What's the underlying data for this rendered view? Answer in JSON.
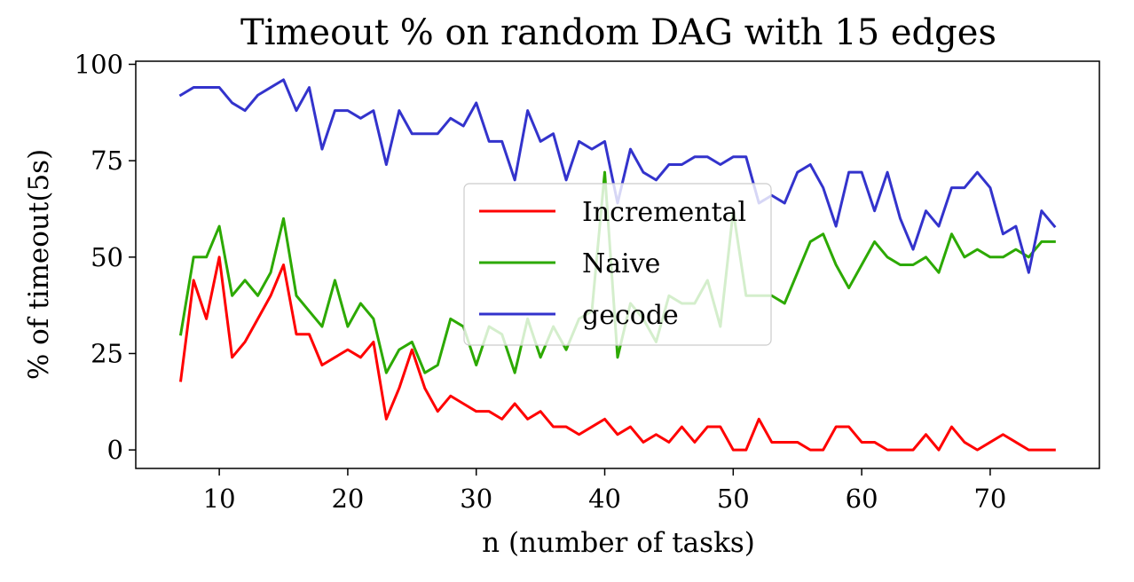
{
  "chart_data": {
    "type": "line",
    "title": "Timeout % on random DAG with 15 edges",
    "xlabel": "n (number of tasks)",
    "ylabel": "% of timeout(5s)",
    "xlim": [
      3.5,
      78.5
    ],
    "ylim": [
      -4.8,
      100.8
    ],
    "xticks": [
      10,
      20,
      30,
      40,
      50,
      60,
      70
    ],
    "yticks": [
      0,
      25,
      50,
      75,
      100
    ],
    "grid": false,
    "legend_position": "center",
    "x": [
      7,
      8,
      9,
      10,
      11,
      12,
      13,
      14,
      15,
      16,
      17,
      18,
      19,
      20,
      21,
      22,
      23,
      24,
      25,
      26,
      27,
      28,
      29,
      30,
      31,
      32,
      33,
      34,
      35,
      36,
      37,
      38,
      39,
      40,
      41,
      42,
      43,
      44,
      45,
      46,
      47,
      48,
      49,
      50,
      51,
      52,
      53,
      54,
      55,
      56,
      57,
      58,
      59,
      60,
      61,
      62,
      63,
      64,
      65,
      66,
      67,
      68,
      69,
      70,
      71,
      72,
      73,
      74,
      75
    ],
    "series": [
      {
        "name": "Incremental",
        "color": "#ff0000",
        "values": [
          18,
          44,
          34,
          50,
          24,
          28,
          34,
          40,
          48,
          30,
          30,
          22,
          24,
          26,
          24,
          28,
          8,
          16,
          26,
          16,
          10,
          14,
          12,
          10,
          10,
          8,
          12,
          8,
          10,
          6,
          6,
          4,
          6,
          8,
          4,
          6,
          2,
          4,
          2,
          6,
          2,
          6,
          6,
          0,
          0,
          8,
          2,
          2,
          2,
          0,
          0,
          6,
          6,
          2,
          2,
          0,
          0,
          0,
          4,
          0,
          6,
          2,
          0,
          2,
          4,
          2,
          0,
          0,
          0
        ]
      },
      {
        "name": "Naive",
        "color": "#2ca900",
        "values": [
          30,
          50,
          50,
          58,
          40,
          44,
          40,
          46,
          60,
          40,
          36,
          32,
          44,
          32,
          38,
          34,
          20,
          26,
          28,
          20,
          22,
          34,
          32,
          22,
          32,
          30,
          20,
          34,
          24,
          32,
          26,
          34,
          36,
          72,
          24,
          38,
          34,
          28,
          40,
          38,
          38,
          44,
          32,
          62,
          40,
          40,
          40,
          38,
          46,
          54,
          56,
          48,
          42,
          48,
          54,
          50,
          48,
          48,
          50,
          46,
          56,
          50,
          52,
          50,
          50,
          52,
          50,
          54,
          54
        ]
      },
      {
        "name": "gecode",
        "color": "#3333cc",
        "values": [
          92,
          94,
          94,
          94,
          90,
          88,
          92,
          94,
          96,
          88,
          94,
          78,
          88,
          88,
          86,
          88,
          74,
          88,
          82,
          82,
          82,
          86,
          84,
          90,
          80,
          80,
          70,
          88,
          80,
          82,
          70,
          80,
          78,
          80,
          64,
          78,
          72,
          70,
          74,
          74,
          76,
          76,
          74,
          76,
          76,
          64,
          66,
          64,
          72,
          74,
          68,
          58,
          72,
          72,
          62,
          72,
          60,
          52,
          62,
          58,
          68,
          68,
          72,
          68,
          56,
          58,
          46,
          62,
          58
        ]
      }
    ]
  }
}
